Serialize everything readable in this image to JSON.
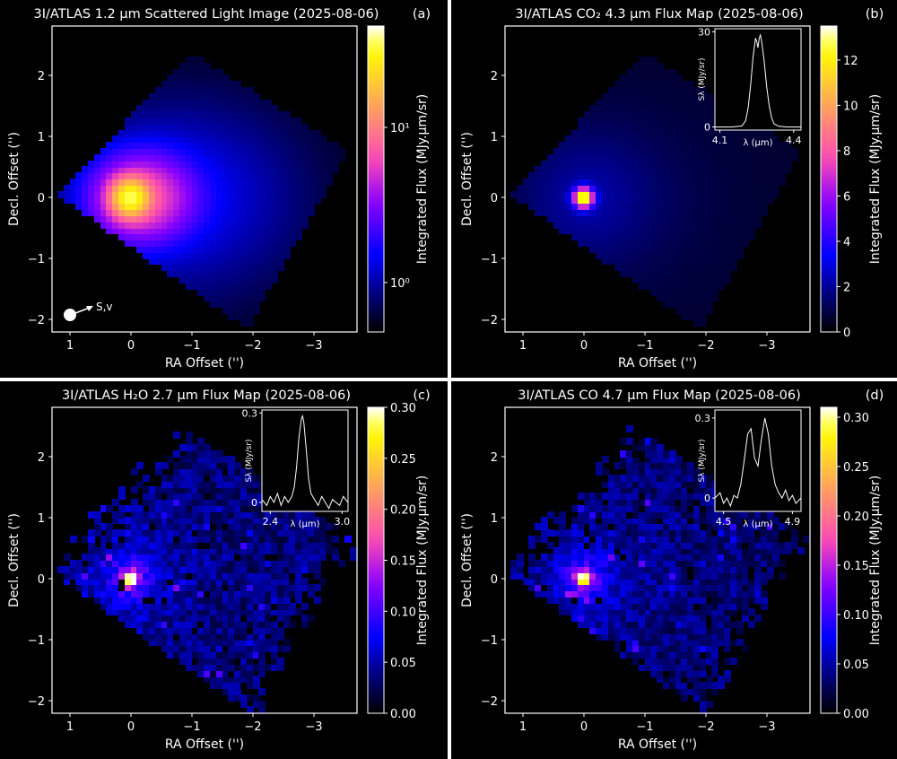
{
  "chart_data": [
    {
      "type": "heatmap",
      "panel": "(a)",
      "title": "3I/ATLAS 1.2 μm Scattered Light Image (2025-08-06)",
      "xlabel": "RA Offset ('')",
      "ylabel": "Decl. Offset ('')",
      "xticks": [
        "1",
        "0",
        "−1",
        "−2",
        "−3"
      ],
      "yticks": [
        "2",
        "1",
        "0",
        "−1",
        "−2"
      ],
      "xlim": [
        1.3,
        -3.7
      ],
      "ylim": [
        -2.2,
        2.8
      ],
      "colorbar": {
        "label": "Integrated Flux (MJy.μm/sr)",
        "scale": "log",
        "range": [
          0.48,
          45
        ],
        "ticks": [
          {
            "v": 1,
            "label": "10⁰"
          },
          {
            "v": 10,
            "label": "10¹"
          }
        ]
      },
      "annotation": "S,v",
      "peak": {
        "ra": 0,
        "dec": 0
      }
    },
    {
      "type": "heatmap",
      "panel": "(b)",
      "title": "3I/ATLAS CO₂ 4.3 μm Flux Map (2025-08-06)",
      "xlabel": "RA Offset ('')",
      "ylabel": "Decl. Offset ('')",
      "xticks": [
        "1",
        "0",
        "−1",
        "−2",
        "−3"
      ],
      "yticks": [
        "2",
        "1",
        "0",
        "−1",
        "−2"
      ],
      "colorbar": {
        "label": "Integrated Flux (MJy.μm/sr)",
        "scale": "linear",
        "range": [
          0,
          13.5
        ],
        "ticks": [
          {
            "v": 0,
            "label": "0"
          },
          {
            "v": 2,
            "label": "2"
          },
          {
            "v": 4,
            "label": "4"
          },
          {
            "v": 6,
            "label": "6"
          },
          {
            "v": 8,
            "label": "8"
          },
          {
            "v": 10,
            "label": "10"
          },
          {
            "v": 12,
            "label": "12"
          }
        ]
      },
      "inset": {
        "xlabel": "λ (μm)",
        "ylabel": "Sλ (MJy/sr)",
        "xlim": [
          4.08,
          4.43
        ],
        "ylim": [
          -1,
          31
        ],
        "xticks": [
          {
            "v": 4.1,
            "label": "4.1"
          },
          {
            "v": 4.4,
            "label": "4.4"
          }
        ],
        "yticks": [
          {
            "v": 0,
            "label": "0"
          },
          {
            "v": 30,
            "label": "30"
          }
        ],
        "x": [
          4.08,
          4.15,
          4.19,
          4.205,
          4.215,
          4.225,
          4.235,
          4.245,
          4.25,
          4.255,
          4.26,
          4.265,
          4.27,
          4.28,
          4.29,
          4.3,
          4.31,
          4.32,
          4.34,
          4.37,
          4.43
        ],
        "y": [
          0,
          0,
          0.3,
          2,
          6,
          13,
          22,
          28,
          27,
          25,
          28,
          29,
          27,
          21,
          13,
          7,
          3,
          1,
          0.2,
          0,
          0
        ]
      }
    },
    {
      "type": "heatmap",
      "panel": "(c)",
      "title": "3I/ATLAS H₂O 2.7 μm Flux Map (2025-08-06)",
      "xlabel": "RA Offset ('')",
      "ylabel": "Decl. Offset ('')",
      "xticks": [
        "1",
        "0",
        "−1",
        "−2",
        "−3"
      ],
      "yticks": [
        "2",
        "1",
        "0",
        "−1",
        "−2"
      ],
      "colorbar": {
        "label": "Integrated Flux (MJy.μm/sr)",
        "scale": "linear",
        "range": [
          0,
          0.3
        ],
        "ticks": [
          {
            "v": 0,
            "label": "0.00"
          },
          {
            "v": 0.05,
            "label": "0.05"
          },
          {
            "v": 0.1,
            "label": "0.10"
          },
          {
            "v": 0.15,
            "label": "0.15"
          },
          {
            "v": 0.2,
            "label": "0.20"
          },
          {
            "v": 0.25,
            "label": "0.25"
          },
          {
            "v": 0.3,
            "label": "0.30"
          }
        ]
      },
      "inset": {
        "xlabel": "λ (μm)",
        "ylabel": "Sλ (MJy/sr)",
        "xlim": [
          2.33,
          3.05
        ],
        "ylim": [
          -0.03,
          0.31
        ],
        "xticks": [
          {
            "v": 2.4,
            "label": "2.4"
          },
          {
            "v": 3.0,
            "label": "3.0"
          }
        ],
        "yticks": [
          {
            "v": 0,
            "label": "0"
          },
          {
            "v": 0.3,
            "label": "0.3"
          }
        ],
        "x": [
          2.33,
          2.37,
          2.4,
          2.43,
          2.46,
          2.49,
          2.52,
          2.55,
          2.58,
          2.6,
          2.62,
          2.64,
          2.66,
          2.67,
          2.68,
          2.7,
          2.72,
          2.74,
          2.77,
          2.8,
          2.83,
          2.86,
          2.89,
          2.92,
          2.95,
          2.98,
          3.01,
          3.05
        ],
        "y": [
          0.01,
          -0.01,
          0.02,
          0.0,
          0.03,
          -0.01,
          0.02,
          0.0,
          0.02,
          0.05,
          0.12,
          0.22,
          0.28,
          0.29,
          0.27,
          0.18,
          0.08,
          0.03,
          0.01,
          -0.01,
          0.02,
          0.0,
          -0.02,
          0.01,
          0.0,
          -0.01,
          0.02,
          0.0
        ]
      }
    },
    {
      "type": "heatmap",
      "panel": "(d)",
      "title": "3I/ATLAS CO 4.7 μm Flux Map (2025-08-06)",
      "xlabel": "RA Offset ('')",
      "ylabel": "Decl. Offset ('')",
      "xticks": [
        "1",
        "0",
        "−1",
        "−2",
        "−3"
      ],
      "yticks": [
        "2",
        "1",
        "0",
        "−1",
        "−2"
      ],
      "colorbar": {
        "label": "Integrated Flux (MJy.μm/sr)",
        "scale": "linear",
        "range": [
          0,
          0.31
        ],
        "ticks": [
          {
            "v": 0,
            "label": "0.00"
          },
          {
            "v": 0.05,
            "label": "0.05"
          },
          {
            "v": 0.1,
            "label": "0.10"
          },
          {
            "v": 0.15,
            "label": "0.15"
          },
          {
            "v": 0.2,
            "label": "0.20"
          },
          {
            "v": 0.25,
            "label": "0.25"
          },
          {
            "v": 0.3,
            "label": "0.30"
          }
        ]
      },
      "inset": {
        "xlabel": "λ (μm)",
        "ylabel": "Sλ (MJy/sr)",
        "xlim": [
          4.45,
          4.95
        ],
        "ylim": [
          -0.05,
          0.33
        ],
        "xticks": [
          {
            "v": 4.5,
            "label": "4.5"
          },
          {
            "v": 4.9,
            "label": "4.9"
          }
        ],
        "yticks": [
          {
            "v": 0,
            "label": "0"
          },
          {
            "v": 0.3,
            "label": "0.3"
          }
        ],
        "x": [
          4.45,
          4.48,
          4.5,
          4.52,
          4.54,
          4.56,
          4.58,
          4.6,
          4.62,
          4.64,
          4.66,
          4.68,
          4.7,
          4.72,
          4.74,
          4.76,
          4.78,
          4.8,
          4.82,
          4.84,
          4.86,
          4.88,
          4.9,
          4.92,
          4.95
        ],
        "y": [
          0.0,
          0.02,
          -0.02,
          0.0,
          -0.03,
          0.01,
          0.0,
          0.05,
          0.14,
          0.24,
          0.26,
          0.15,
          0.12,
          0.22,
          0.3,
          0.24,
          0.12,
          0.05,
          0.02,
          0.0,
          0.03,
          -0.01,
          0.01,
          -0.02,
          0.0
        ]
      }
    }
  ],
  "colors": {
    "background": "#000000",
    "divider": "#ffffff",
    "axes": "#ffffff",
    "spectrum": "#ffffff"
  }
}
